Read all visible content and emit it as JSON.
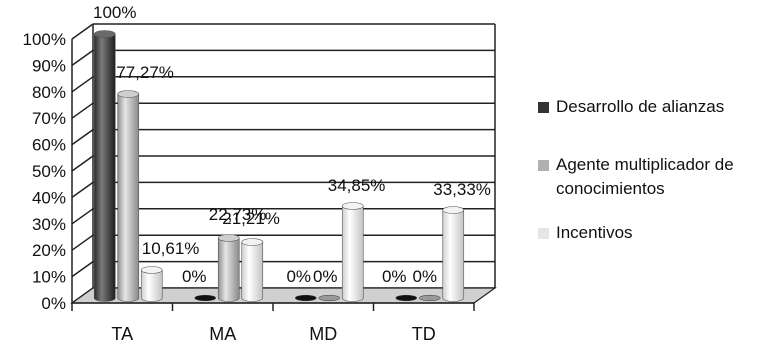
{
  "chart_data": {
    "type": "bar",
    "title": "",
    "xlabel": "",
    "ylabel": "",
    "categories": [
      "TA",
      "MA",
      "MD",
      "TD"
    ],
    "ylim": [
      0,
      100
    ],
    "y_ticks": [
      "0%",
      "10%",
      "20%",
      "30%",
      "40%",
      "50%",
      "60%",
      "70%",
      "80%",
      "90%",
      "100%"
    ],
    "grid": true,
    "legend_position": "right",
    "series": [
      {
        "name": "Desarrollo de alianzas",
        "color": "#3c3c3c",
        "values": [
          100,
          0,
          0,
          0
        ],
        "labels": [
          "100%",
          "0%",
          "0%",
          "0%"
        ]
      },
      {
        "name": "Agente multiplicador de conocimientos",
        "color": "#b5b5b5",
        "values": [
          77.27,
          22.73,
          0,
          0
        ],
        "labels": [
          "77,27%",
          "22,73%",
          "0%",
          "0%"
        ]
      },
      {
        "name": "Incentivos",
        "color": "#e8e8e8",
        "values": [
          10.61,
          21.21,
          34.85,
          33.33
        ],
        "labels": [
          "10,61%",
          "21,21%",
          "34,85%",
          "33,33%"
        ]
      }
    ]
  }
}
